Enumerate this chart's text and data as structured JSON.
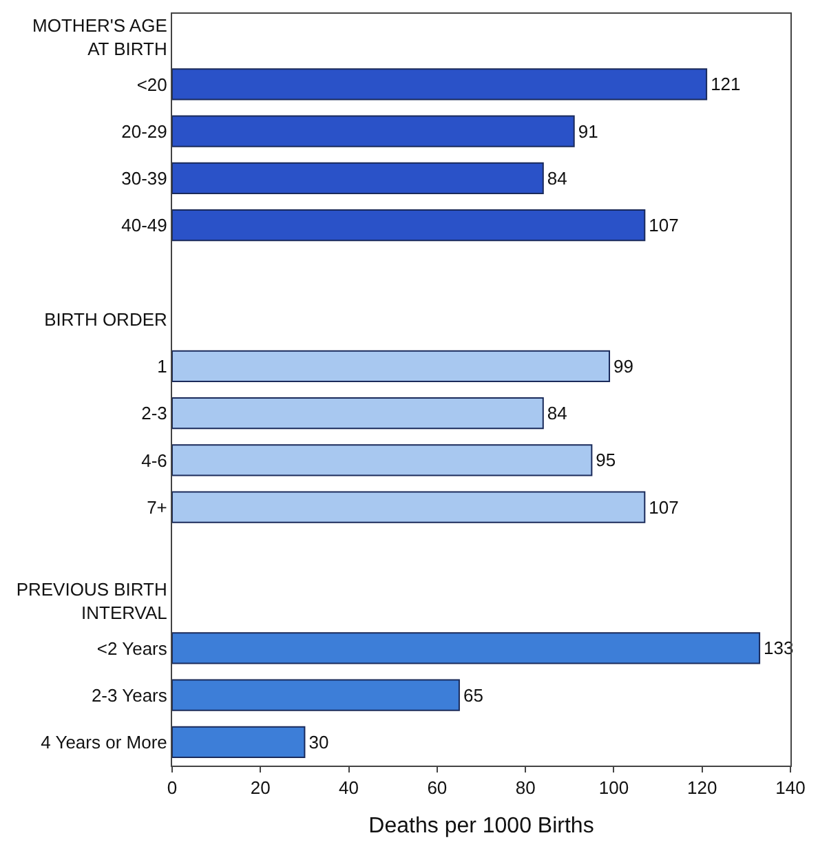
{
  "chart_data": {
    "type": "bar",
    "orientation": "horizontal",
    "xlabel": "Deaths per 1000 Births",
    "categories": [
      "MOTHER'S AGE\nAT BIRTH",
      "<20",
      "20-29",
      "30-39",
      "40-49",
      null,
      "BIRTH ORDER",
      "1",
      "2-3",
      "4-6",
      "7+",
      null,
      "PREVIOUS BIRTH\nINTERVAL",
      "<2 Years",
      "2-3 Years",
      "4 Years or More"
    ],
    "values": [
      null,
      121,
      91,
      84,
      107,
      null,
      null,
      99,
      84,
      95,
      107,
      null,
      null,
      133,
      65,
      30
    ],
    "colors": [
      null,
      "#2a52c8",
      "#2a52c8",
      "#2a52c8",
      "#2a52c8",
      null,
      null,
      "#a8c8f0",
      "#a8c8f0",
      "#a8c8f0",
      "#a8c8f0",
      null,
      null,
      "#3d7ed8",
      "#3d7ed8",
      "#3d7ed8"
    ],
    "data_labels": true,
    "xlim": [
      0,
      140
    ],
    "xticks": [
      0,
      20,
      40,
      60,
      80,
      100,
      120,
      140
    ]
  }
}
